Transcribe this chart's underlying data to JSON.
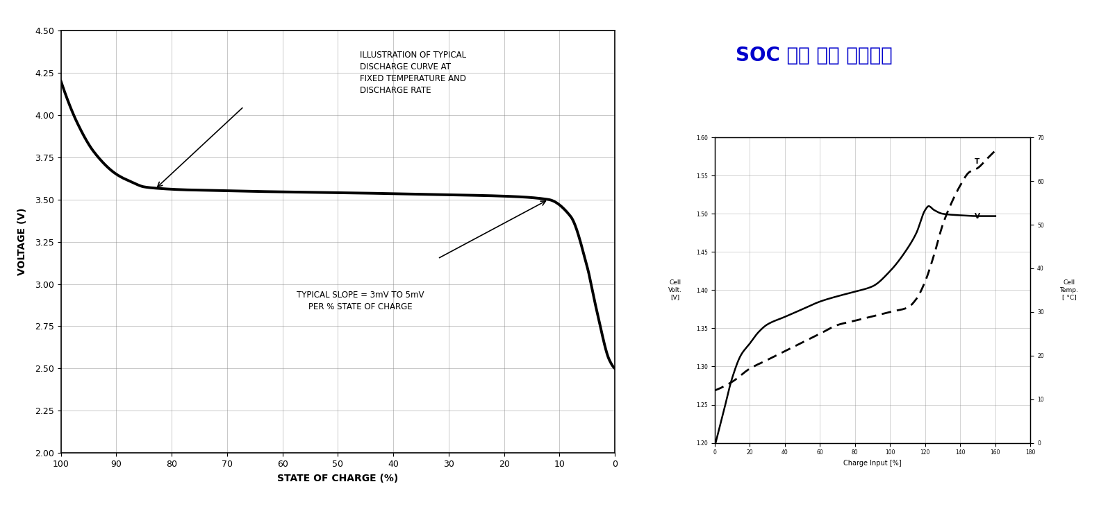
{
  "title": "SOC 자동 측정 알고리즘",
  "title_color": "#0000CC",
  "title_fontsize": 20,
  "bg_color": "#FFFFFF",
  "chart1": {
    "ylabel": "VOLTAGE (V)",
    "xlabel": "STATE OF CHARGE (%)",
    "ylim": [
      2.0,
      4.5
    ],
    "yticks": [
      2.0,
      2.25,
      2.5,
      2.75,
      3.0,
      3.25,
      3.5,
      3.75,
      4.0,
      4.25,
      4.5
    ],
    "xticks": [
      0,
      10,
      20,
      30,
      40,
      50,
      60,
      70,
      80,
      90,
      100
    ],
    "xlim": [
      0,
      100
    ],
    "annotation1": "ILLUSTRATION OF TYPICAL\nDISCHARGE CURVE AT\nFIXED TEMPERATURE AND\nDISCHARGE RATE",
    "annotation2": "TYPICAL SLOPE = 3mV TO 5mV\nPER % STATE OF CHARGE"
  },
  "chart2": {
    "ylabel_left": "Cell\nVolt.\n[V]",
    "ylabel_right": "Cell\nTemp.\n[ °C]",
    "xlabel": "Charge Input [%]",
    "ylim_left": [
      1.2,
      1.6
    ],
    "ylim_right": [
      0,
      70
    ],
    "yticks_left": [
      1.2,
      1.25,
      1.3,
      1.35,
      1.4,
      1.45,
      1.5,
      1.55,
      1.6
    ],
    "yticks_right": [
      0,
      10,
      20,
      30,
      40,
      50,
      60,
      70
    ],
    "xticks": [
      0,
      20,
      40,
      60,
      80,
      100,
      120,
      140,
      160,
      180
    ],
    "xlim": [
      0,
      180
    ],
    "label_V": "V",
    "label_T": "T"
  }
}
